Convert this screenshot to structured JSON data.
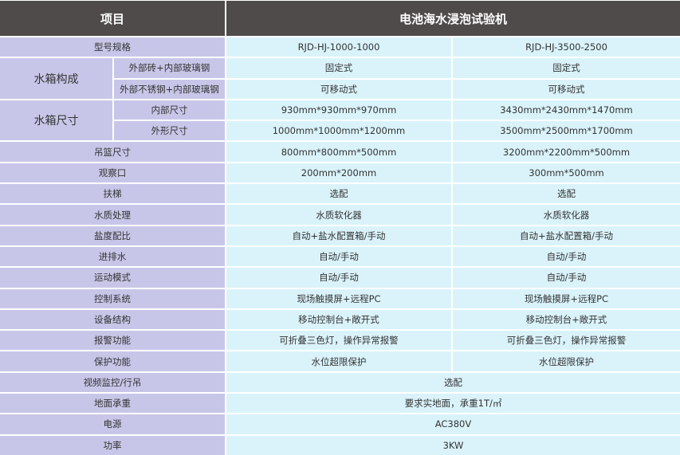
{
  "header": {
    "item": "项目",
    "product": "电池海水浸泡试验机"
  },
  "colors": {
    "header": "#4f4b4b",
    "label": "#c8c6e8",
    "value": "#daf3fb"
  },
  "rows": {
    "model": {
      "label": "型号规格",
      "a": "RJD-HJ-1000-1000",
      "b": "RJD-HJ-3500-2500"
    },
    "tank_build": {
      "label": "水箱构成",
      "sub1": "外部砖+内部玻璃钢",
      "a1": "固定式",
      "b1": "固定式",
      "sub2": "外部不锈钢+内部玻璃钢",
      "a2": "可移动式",
      "b2": "可移动式"
    },
    "tank_size": {
      "label": "水箱尺寸",
      "sub1": "内部尺寸",
      "a1": "930mm*930mm*970mm",
      "b1": "3430mm*2430mm*1470mm",
      "sub2": "外形尺寸",
      "a2": "1000mm*1000mm*1200mm",
      "b2": "3500mm*2500mm*1700mm"
    },
    "basket": {
      "label": "吊篮尺寸",
      "a": "800mm*800mm*500mm",
      "b": "3200mm*2200mm*500mm"
    },
    "window": {
      "label": "观察口",
      "a": "200mm*200mm",
      "b": "300mm*500mm"
    },
    "ladder": {
      "label": "扶梯",
      "a": "选配",
      "b": "选配"
    },
    "water": {
      "label": "水质处理",
      "a": "水质软化器",
      "b": "水质软化器"
    },
    "salinity": {
      "label": "盐度配比",
      "a": "自动+盐水配置箱/手动",
      "b": "自动+盐水配置箱/手动"
    },
    "inout": {
      "label": "进排水",
      "a": "自动/手动",
      "b": "自动/手动"
    },
    "motion": {
      "label": "运动模式",
      "a": "自动/手动",
      "b": "自动/手动"
    },
    "control": {
      "label": "控制系统",
      "a": "现场触摸屏+远程PC",
      "b": "现场触摸屏+远程PC"
    },
    "structure": {
      "label": "设备结构",
      "a": "移动控制台+敞开式",
      "b": "移动控制台+敞开式"
    },
    "alarm": {
      "label": "报警功能",
      "a": "可折叠三色灯，操作异常报警",
      "b": "可折叠三色灯，操作异常报警"
    },
    "protect": {
      "label": "保护功能",
      "a": "水位超限保护",
      "b": "水位超限保护"
    },
    "video": {
      "label": "视频监控/行吊",
      "v": "选配"
    },
    "floor": {
      "label": "地面承重",
      "v": "要求实地面，承重1T/㎡"
    },
    "power": {
      "label": "电源",
      "v": "AC380V"
    },
    "wattage": {
      "label": "功率",
      "v": "3KW"
    }
  }
}
